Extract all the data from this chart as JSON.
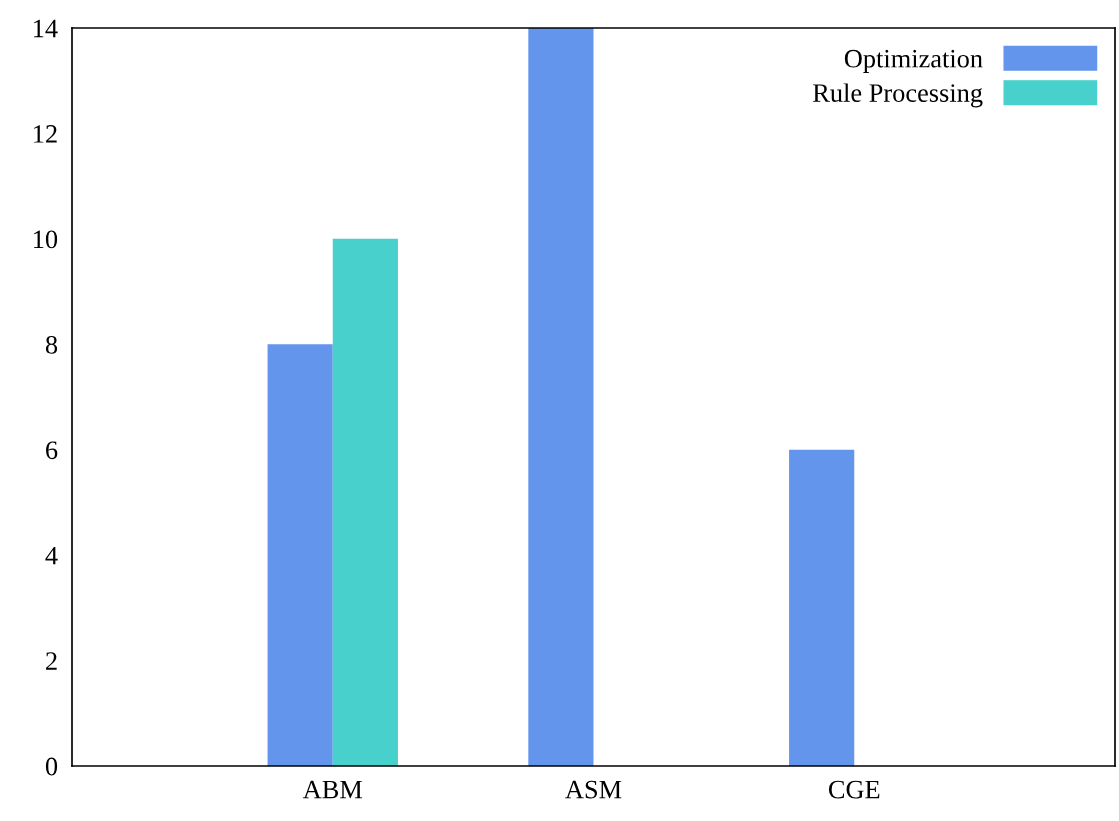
{
  "chart_data": {
    "type": "bar",
    "categories": [
      "ABM",
      "ASM",
      "CGE"
    ],
    "series": [
      {
        "name": "Optimization",
        "color": "#6495ed",
        "values": [
          8,
          14,
          6
        ]
      },
      {
        "name": "Rule Processing",
        "color": "#48d1cc",
        "values": [
          10,
          0,
          0
        ]
      }
    ],
    "ylim": [
      0,
      14
    ],
    "yticks": [
      0,
      2,
      4,
      6,
      8,
      10,
      12,
      14
    ],
    "grid": false,
    "legend": "top right"
  }
}
